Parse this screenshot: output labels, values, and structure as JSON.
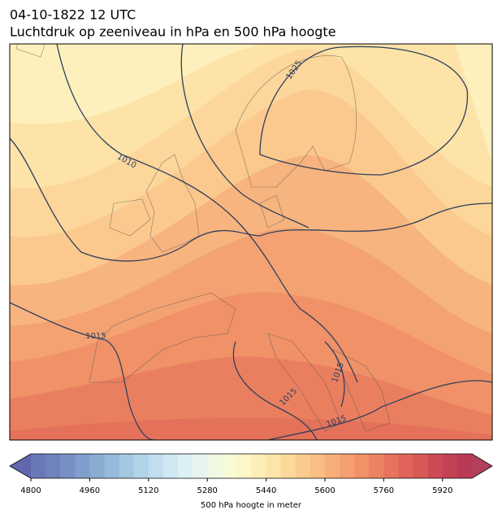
{
  "header": {
    "date": "04-10-1822 12 UTC",
    "title": "Luchtdruk op zeeniveau in hPa en 500 hPa hoogte"
  },
  "map": {
    "isobar_labels": [
      1010,
      1025,
      1015,
      1015,
      1015,
      1015
    ]
  },
  "colorbar": {
    "label": "500 hPa hoogte in meter",
    "range": [
      4800,
      6000
    ],
    "ticks": [
      4800,
      4960,
      5120,
      5280,
      5440,
      5600,
      5760,
      5920
    ],
    "colors": [
      "#6a77b8",
      "#6f82be",
      "#7690c5",
      "#7f9ecc",
      "#89acd3",
      "#95badb",
      "#a3c8e1",
      "#b1d4e8",
      "#c0deee",
      "#cfe8f2",
      "#ddf0f4",
      "#e8f5ef",
      "#f1f8e4",
      "#f8fad6",
      "#fdf6c6",
      "#fdeeb7",
      "#fde4a9",
      "#fcd89b",
      "#fbcb8e",
      "#fabd83",
      "#f8ae79",
      "#f5a070",
      "#f19168",
      "#ed8262",
      "#e7735c",
      "#e06558",
      "#d85856",
      "#ce4b55",
      "#c44255",
      "#b93a55"
    ],
    "under": "#5f67ae",
    "over": "#b2405a"
  }
}
